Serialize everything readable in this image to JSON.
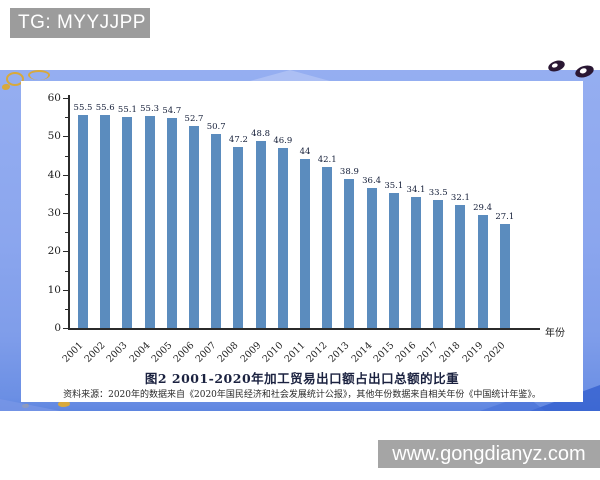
{
  "tag": {
    "label": "TG: MYYJJPP"
  },
  "watermark": {
    "label": "www.gongdianyz.com"
  },
  "chart_data": {
    "type": "bar",
    "title": "图2  2001-2020年加工贸易出口额占出口总额的比重",
    "source_note": "资料来源：2020年的数据来自《2020年国民经济和社会发展统计公报》，其他年份数据来自相关年份《中国统计年鉴》。",
    "categories": [
      "2001",
      "2002",
      "2003",
      "2004",
      "2005",
      "2006",
      "2007",
      "2008",
      "2009",
      "2010",
      "2011",
      "2012",
      "2013",
      "2014",
      "2015",
      "2016",
      "2017",
      "2018",
      "2019",
      "2020"
    ],
    "values": [
      55.5,
      55.6,
      55.1,
      55.3,
      54.7,
      52.7,
      50.7,
      47.2,
      48.8,
      46.9,
      44,
      42.1,
      38.9,
      36.4,
      35.1,
      34.1,
      33.5,
      32.1,
      29.4,
      27.1
    ],
    "xlabel": "年份",
    "ylabel": "",
    "ylim": [
      0,
      60
    ],
    "ytick_step": 10,
    "ytick_minor_step": 5,
    "grid": false,
    "legend": "none",
    "bar_color": "#5b8cbe",
    "value_labels": true
  },
  "colors": {
    "bar": "#5b8cbe",
    "slide_background": "#8ba6ee",
    "ornament_gold": "#d8a93c",
    "tag_background": "#9c9c9c",
    "watermark_background": "#a5a5a5",
    "axis": "#2b2b2b",
    "title_text": "#1b2240"
  }
}
